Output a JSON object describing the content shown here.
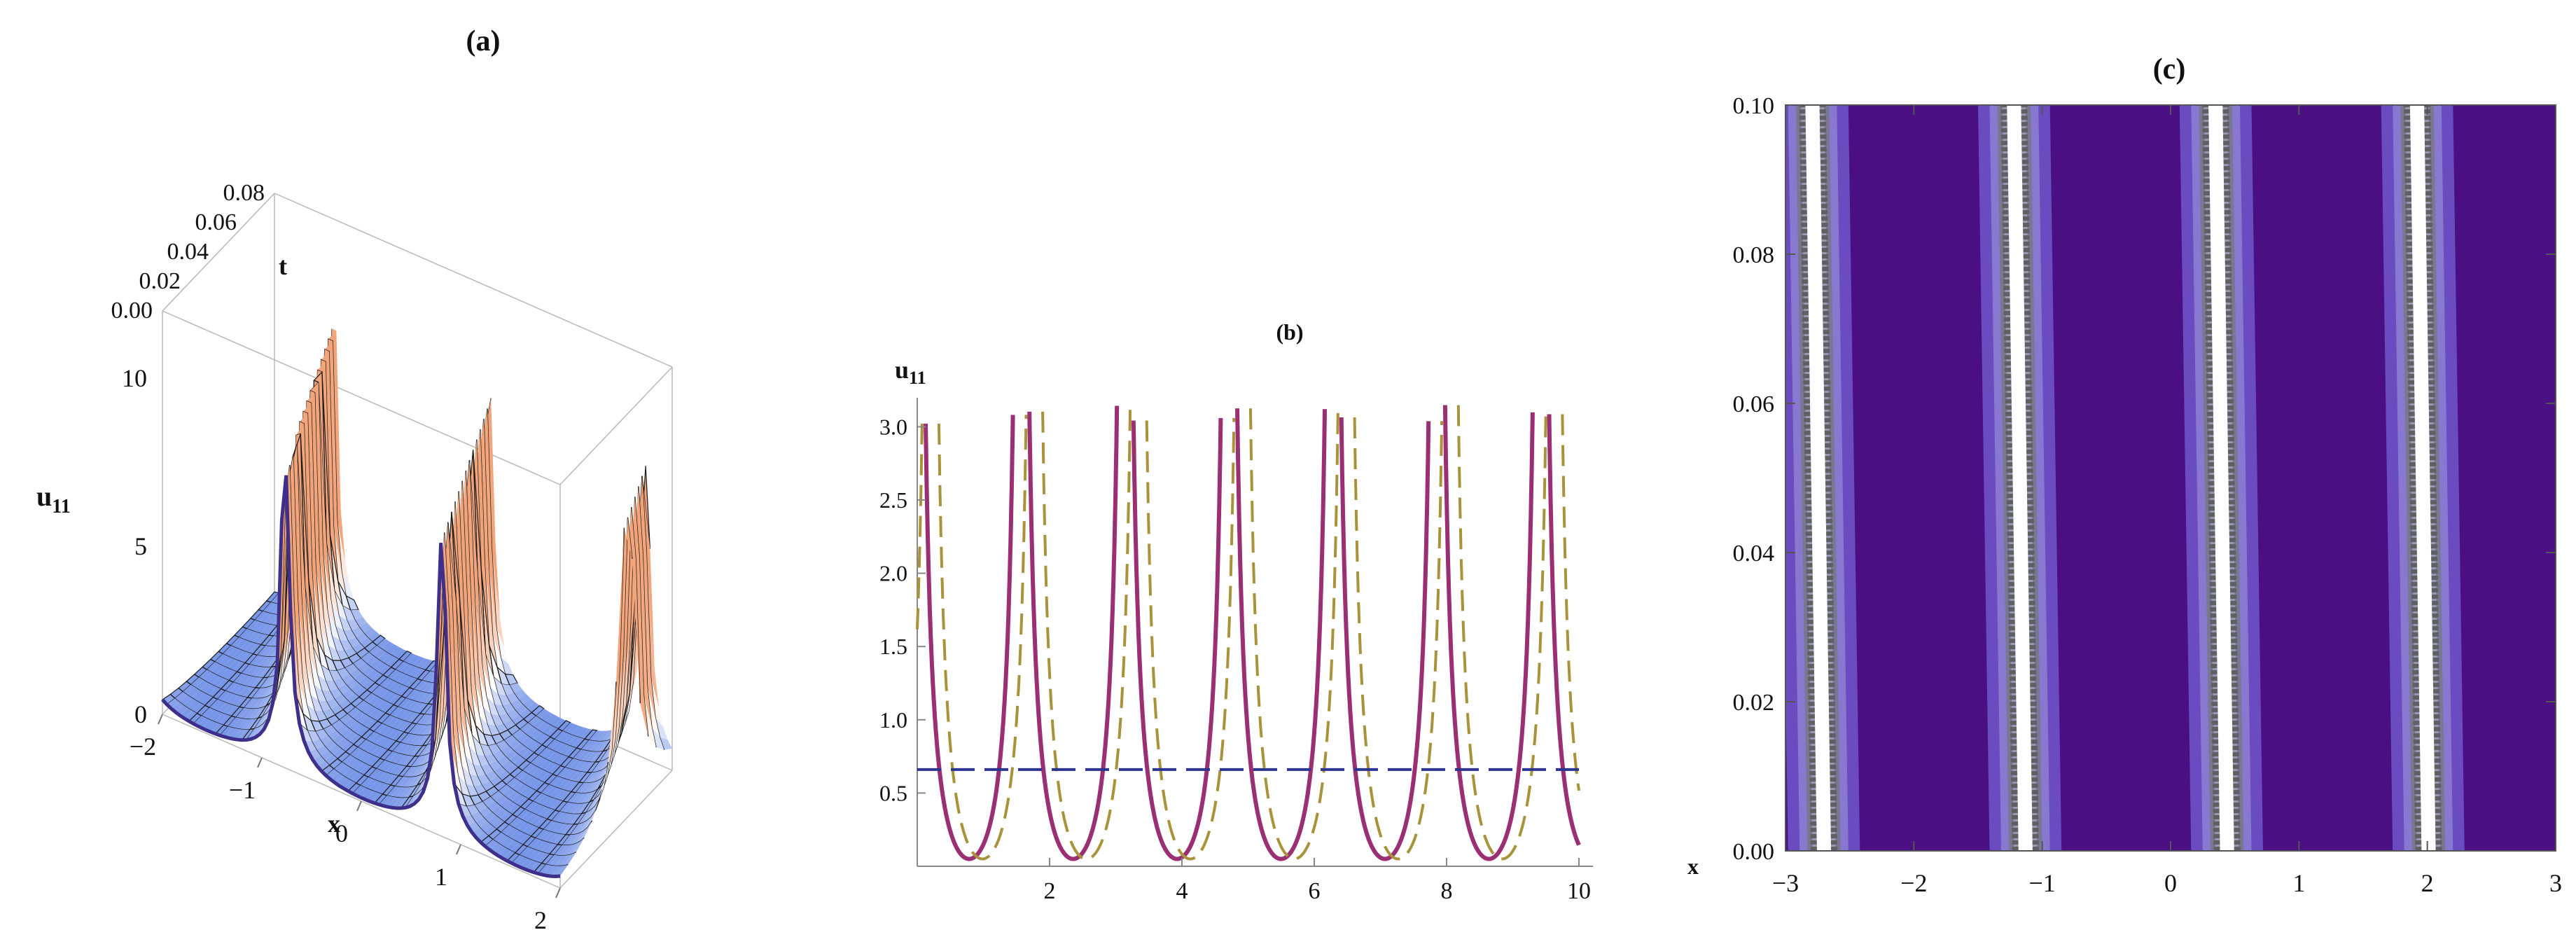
{
  "chart_data": [
    {
      "panel": "(a)",
      "type": "surface3d",
      "title": "(a)",
      "xlabel": "x",
      "ylabel": "t",
      "zlabel": "u",
      "zlabel_sub": "11",
      "x_ticks": [
        "−2",
        "−1",
        "0",
        "1",
        "2"
      ],
      "t_ticks": [
        "0.00",
        "0.02",
        "0.04",
        "0.06",
        "0.08"
      ],
      "z_ticks": [
        "0",
        "5",
        "10"
      ],
      "xlim": [
        -2,
        2
      ],
      "tlim": [
        0,
        0.08
      ],
      "zlim": [
        0,
        12
      ],
      "surface_peaks_x": [
        -1.55,
        -0.45,
        0.95
      ],
      "colors": {
        "high": "#f2a47a",
        "mid": "#ffffff",
        "low": "#6f8fe6",
        "edge": "#3d2f8a",
        "mesh": "#1a1a1a"
      }
    },
    {
      "panel": "(b)",
      "type": "line",
      "title": "(b)",
      "xlabel": "x",
      "ylabel": "u",
      "ylabel_sub": "11",
      "xlim": [
        0,
        10
      ],
      "ylim": [
        0,
        3.15
      ],
      "x_ticks": [
        "2",
        "4",
        "6",
        "8",
        "10"
      ],
      "y_ticks": [
        "0.5",
        "1.0",
        "1.5",
        "2.0",
        "2.5",
        "3.0"
      ],
      "period": 1.5708,
      "series": [
        {
          "style": "solid",
          "color": "#9b2f73",
          "phase": 0.0
        },
        {
          "style": "dashed",
          "color": "#a8923a",
          "phase": 0.2
        },
        {
          "style": "dashed",
          "color": "#2b3590",
          "constant": 0.66
        }
      ]
    },
    {
      "panel": "(c)",
      "type": "heatmap",
      "title": "(c)",
      "xlim": [
        -3,
        3
      ],
      "ylim": [
        0,
        0.1
      ],
      "x_ticks": [
        "−3",
        "−2",
        "−1",
        "0",
        "1",
        "2",
        "3"
      ],
      "y_ticks": [
        "0.00",
        "0.02",
        "0.04",
        "0.06",
        "0.08",
        "0.10"
      ],
      "period": 1.5708,
      "stripe_x_at_t0": [
        -2.7,
        -1.13,
        0.44,
        2.01
      ],
      "drift_dx_dt": -0.9,
      "colors": {
        "background": "#4a0f82",
        "band1": "#6a4bc0",
        "band2": "#8878d0",
        "band3": "#7a7890",
        "core": "#ffffff"
      }
    }
  ]
}
